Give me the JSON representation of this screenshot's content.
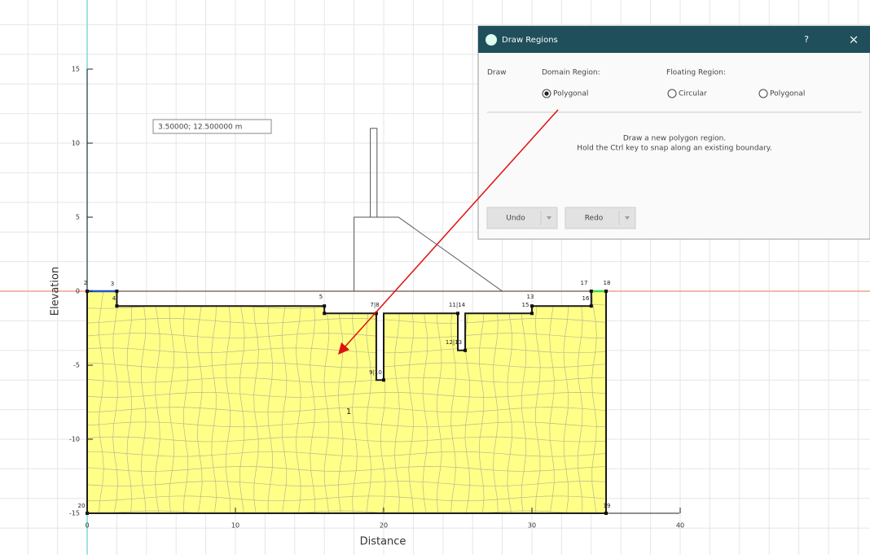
{
  "plot": {
    "xlabel": "Distance",
    "ylabel": "Elevation",
    "xticks": [
      0,
      10,
      20,
      30,
      40
    ],
    "yticks": [
      -15,
      -10,
      -5,
      0,
      5,
      10,
      15
    ],
    "coordinate_tooltip": "3.50000; 12.500000 m",
    "region_label": "1",
    "point_labels": [
      "2",
      "3",
      "4",
      "5",
      "7|8",
      "9|10",
      "11|14",
      "12|13",
      "13",
      "15",
      "16",
      "17",
      "18",
      "19",
      "20"
    ]
  },
  "dialog": {
    "title": "Draw Regions",
    "help": "?",
    "close": "×",
    "draw_label": "Draw",
    "domain_region": "Domain Region:",
    "floating_region": "Floating Region:",
    "options": [
      "Polygonal",
      "Circular",
      "Polygonal"
    ],
    "selected": 0,
    "message": [
      "Draw a new polygon region.",
      "Hold the Ctrl key to snap along an existing boundary."
    ],
    "buttons": [
      "Undo",
      "Redo"
    ]
  }
}
